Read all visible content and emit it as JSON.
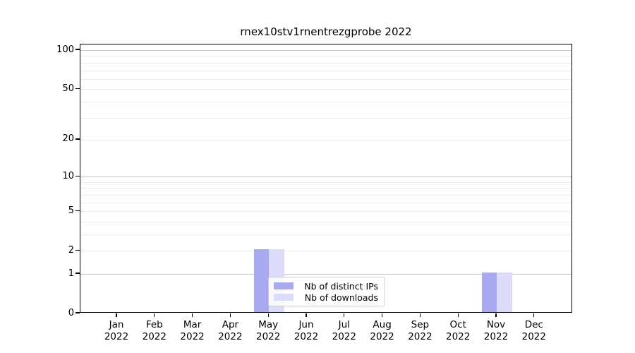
{
  "chart_data": {
    "type": "bar",
    "title": "rnex10stv1rnentrezgprobe 2022",
    "categories": [
      "Jan",
      "Feb",
      "Mar",
      "Apr",
      "May",
      "Jun",
      "Jul",
      "Aug",
      "Sep",
      "Oct",
      "Nov",
      "Dec"
    ],
    "category_year": "2022",
    "series": [
      {
        "name": "Nb of distinct IPs",
        "color": "#a9a9f2",
        "values": [
          0,
          0,
          0,
          0,
          2,
          0,
          0,
          0,
          0,
          0,
          1,
          0
        ]
      },
      {
        "name": "Nb of downloads",
        "color": "#dcdcfa",
        "values": [
          0,
          0,
          0,
          0,
          2,
          0,
          0,
          0,
          0,
          0,
          1,
          0
        ]
      }
    ],
    "xlabel": "",
    "ylabel": "",
    "y_scale": "log10(1+y)",
    "y_ticks": [
      0,
      1,
      2,
      5,
      10,
      20,
      50,
      100
    ],
    "y_major_gridlines": [
      1,
      10,
      100
    ],
    "y_minor_gridlines": [
      2,
      3,
      4,
      5,
      6,
      7,
      8,
      9,
      20,
      30,
      40,
      50,
      60,
      70,
      80,
      90
    ],
    "ylim": [
      0,
      110.5
    ],
    "grid": true,
    "legend_position": "inside-bottom-center",
    "colors": {
      "major_gridline": "#c6c6c6",
      "minor_gridline": "#ececec",
      "axis": "#000000",
      "text": "#000000",
      "legend_border": "#cccccc",
      "legend_background": "#ffffff",
      "legend_background_opacity": 0.8
    }
  }
}
